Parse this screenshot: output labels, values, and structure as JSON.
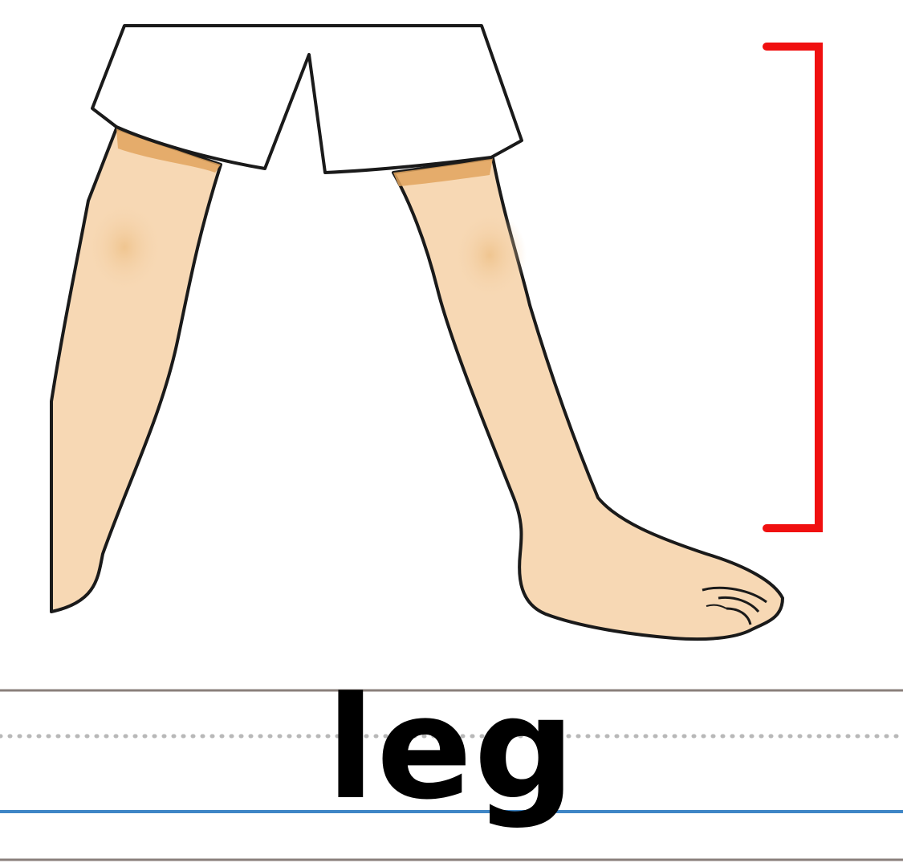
{
  "word": "leg",
  "colors": {
    "skin": "#F7D8B4",
    "skin_shadow": "#EFC48E",
    "cuff": "#E2A45E",
    "outline": "#1A1A1A",
    "shorts": "#FFFFFF",
    "bracket": "#F01010",
    "top_line": "#8A7F7B",
    "mid_dotted": "#B8B8B8",
    "base_line": "#3F86C6",
    "bottom_line": "#8A7F7B"
  },
  "icons": {
    "illustration": "legs-illustration",
    "bracket": "red-bracket-icon"
  }
}
